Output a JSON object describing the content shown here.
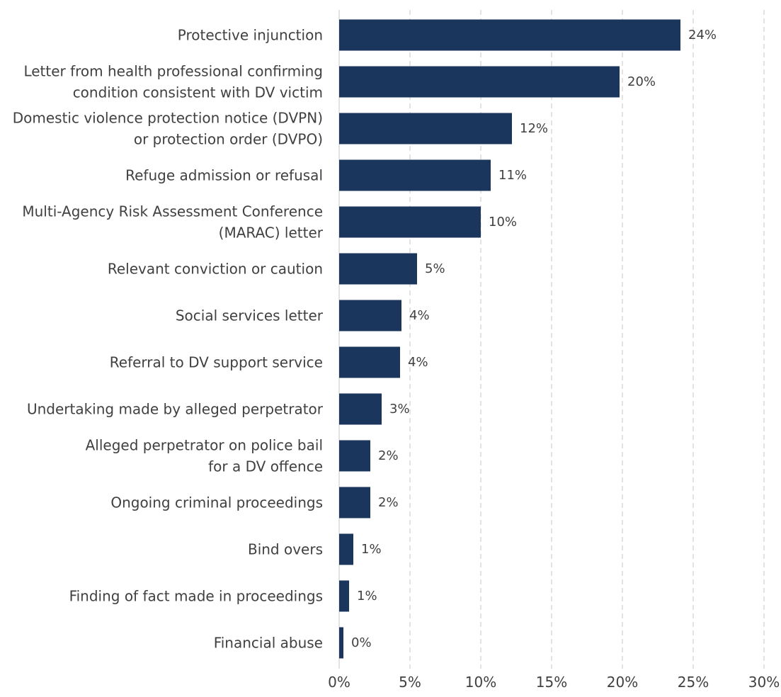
{
  "chart_data": {
    "type": "bar",
    "orientation": "horizontal",
    "title": "",
    "xlabel": "",
    "ylabel": "",
    "categories": [
      "Protective injunction",
      "Letter from health professional confirming\ncondition consistent with DV victim",
      "Domestic violence protection notice (DVPN)\nor protection order (DVPO)",
      "Refuge admission or refusal",
      "Multi-Agency Risk Assessment Conference\n(MARAC) letter",
      "Relevant conviction or caution",
      "Social services letter",
      "Referral to DV support service",
      "Undertaking made by alleged perpetrator",
      "Alleged perpetrator on police bail\nfor a DV offence",
      "Ongoing criminal proceedings",
      "Bind overs",
      "Finding of fact made in proceedings",
      "Financial abuse"
    ],
    "values": [
      24.1,
      19.8,
      12.2,
      10.7,
      10.0,
      5.5,
      4.4,
      4.3,
      3.0,
      2.2,
      2.2,
      1.0,
      0.7,
      0.3
    ],
    "data_labels": [
      "24%",
      "20%",
      "12%",
      "11%",
      "10%",
      "5%",
      "4%",
      "4%",
      "3%",
      "2%",
      "2%",
      "1%",
      "1%",
      "0%"
    ],
    "xlim": [
      0,
      30
    ],
    "xticks": [
      0,
      5,
      10,
      15,
      20,
      25,
      30
    ],
    "xtick_labels": [
      "0%",
      "5%",
      "10%",
      "15%",
      "20%",
      "25%",
      "30%"
    ],
    "grid": "vertical dashed",
    "legend": "none",
    "colors": {
      "bar": "#1b365d",
      "text": "#404040",
      "grid": "#d0d0d0"
    }
  }
}
